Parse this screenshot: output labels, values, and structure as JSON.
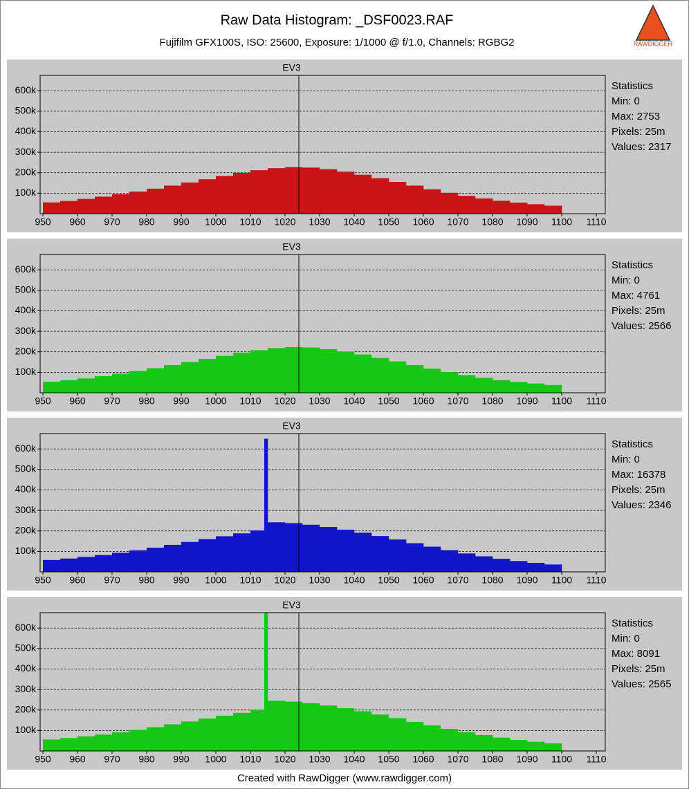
{
  "header": {
    "title": "Raw Data Histogram: _DSF0023.RAF",
    "subtitle": "Fujifilm GFX100S, ISO: 25600, Exposure: 1/1000 @ f/1.0, Channels: RGBG2"
  },
  "logo": "RAWDIGGER",
  "footer": "Created with RawDigger (www.rawdigger.com)",
  "chart_data": [
    {
      "type": "histogram",
      "title": "EV3",
      "color": "#c81414",
      "bins": [
        950,
        955,
        960,
        965,
        970,
        975,
        980,
        985,
        990,
        995,
        1000,
        1005,
        1010,
        1015,
        1020,
        1025,
        1030,
        1035,
        1040,
        1045,
        1050,
        1055,
        1060,
        1065,
        1070,
        1075,
        1080,
        1085,
        1090,
        1095,
        1100
      ],
      "counts": [
        55000,
        62000,
        72000,
        83000,
        95000,
        108000,
        122000,
        137000,
        152000,
        168000,
        184000,
        199000,
        212000,
        222000,
        227000,
        225000,
        217000,
        205000,
        190000,
        173000,
        155000,
        137000,
        119000,
        102000,
        87000,
        74000,
        63000,
        54000,
        46000,
        39000
      ],
      "xlim": [
        949.2,
        1112.6
      ],
      "ylim": [
        0,
        675000
      ],
      "xticks": [
        950,
        960,
        970,
        980,
        990,
        1000,
        1010,
        1020,
        1030,
        1040,
        1050,
        1060,
        1070,
        1080,
        1090,
        1100,
        1110
      ],
      "yticks": [
        {
          "value": 100000,
          "label": "100k"
        },
        {
          "value": 200000,
          "label": "200k"
        },
        {
          "value": 300000,
          "label": "300k"
        },
        {
          "value": 400000,
          "label": "400k"
        },
        {
          "value": 500000,
          "label": "500k"
        },
        {
          "value": 600000,
          "label": "600k"
        }
      ],
      "grid": true,
      "reference_x": 1024,
      "statistics": [
        "Statistics",
        "Min: 0",
        "Max: 2753",
        "Pixels: 25m",
        "Values: 2317"
      ]
    },
    {
      "type": "histogram",
      "title": "EV3",
      "color": "#14c814",
      "bins": [
        950,
        955,
        960,
        965,
        970,
        975,
        980,
        985,
        990,
        995,
        1000,
        1005,
        1010,
        1015,
        1020,
        1025,
        1030,
        1035,
        1040,
        1045,
        1050,
        1055,
        1060,
        1065,
        1070,
        1075,
        1080,
        1085,
        1090,
        1095,
        1100
      ],
      "counts": [
        54000,
        61000,
        70000,
        81000,
        93000,
        106000,
        120000,
        135000,
        150000,
        165000,
        180000,
        195000,
        208000,
        218000,
        223000,
        221000,
        213000,
        201000,
        187000,
        170000,
        153000,
        135000,
        118000,
        101000,
        86000,
        73000,
        62000,
        53000,
        45000,
        38000
      ],
      "xlim": [
        949.2,
        1112.6
      ],
      "ylim": [
        0,
        675000
      ],
      "xticks": [
        950,
        960,
        970,
        980,
        990,
        1000,
        1010,
        1020,
        1030,
        1040,
        1050,
        1060,
        1070,
        1080,
        1090,
        1100,
        1110
      ],
      "yticks": [
        {
          "value": 100000,
          "label": "100k"
        },
        {
          "value": 200000,
          "label": "200k"
        },
        {
          "value": 300000,
          "label": "300k"
        },
        {
          "value": 400000,
          "label": "400k"
        },
        {
          "value": 500000,
          "label": "500k"
        },
        {
          "value": 600000,
          "label": "600k"
        }
      ],
      "grid": true,
      "reference_x": 1024,
      "statistics": [
        "Statistics",
        "Min: 0",
        "Max: 4761",
        "Pixels: 25m",
        "Values: 2566"
      ]
    },
    {
      "type": "histogram",
      "title": "EV3",
      "color": "#1414c8",
      "bins": [
        950,
        955,
        960,
        965,
        970,
        975,
        980,
        985,
        990,
        995,
        1000,
        1005,
        1010,
        1014,
        1015,
        1020,
        1025,
        1030,
        1035,
        1040,
        1045,
        1050,
        1055,
        1060,
        1065,
        1070,
        1075,
        1080,
        1085,
        1090,
        1095,
        1100
      ],
      "counts": [
        58000,
        65000,
        73000,
        82000,
        93000,
        105000,
        118000,
        132000,
        146000,
        160000,
        174000,
        188000,
        202000,
        650000,
        242000,
        238000,
        230000,
        219000,
        206000,
        191000,
        175000,
        158000,
        140000,
        123000,
        106000,
        90000,
        76000,
        64000,
        53000,
        44000,
        36000
      ],
      "xlim": [
        949.2,
        1112.6
      ],
      "ylim": [
        0,
        675000
      ],
      "xticks": [
        950,
        960,
        970,
        980,
        990,
        1000,
        1010,
        1020,
        1030,
        1040,
        1050,
        1060,
        1070,
        1080,
        1090,
        1100,
        1110
      ],
      "yticks": [
        {
          "value": 100000,
          "label": "100k"
        },
        {
          "value": 200000,
          "label": "200k"
        },
        {
          "value": 300000,
          "label": "300k"
        },
        {
          "value": 400000,
          "label": "400k"
        },
        {
          "value": 500000,
          "label": "500k"
        },
        {
          "value": 600000,
          "label": "600k"
        }
      ],
      "grid": true,
      "reference_x": 1024,
      "statistics": [
        "Statistics",
        "Min: 0",
        "Max: 16378",
        "Pixels: 25m",
        "Values: 2346"
      ]
    },
    {
      "type": "histogram",
      "title": "EV3",
      "color": "#14c814",
      "bins": [
        950,
        955,
        960,
        965,
        970,
        975,
        980,
        985,
        990,
        995,
        1000,
        1005,
        1010,
        1014,
        1015,
        1020,
        1025,
        1030,
        1035,
        1040,
        1045,
        1050,
        1055,
        1060,
        1065,
        1070,
        1075,
        1080,
        1085,
        1090,
        1095,
        1100
      ],
      "counts": [
        56000,
        63000,
        71000,
        80000,
        91000,
        103000,
        116000,
        130000,
        144000,
        158000,
        172000,
        186000,
        200000,
        700000,
        245000,
        241000,
        233000,
        222000,
        209000,
        194000,
        178000,
        160000,
        142000,
        125000,
        108000,
        92000,
        78000,
        65000,
        54000,
        45000,
        37000
      ],
      "xlim": [
        949.2,
        1112.6
      ],
      "ylim": [
        0,
        675000
      ],
      "xticks": [
        950,
        960,
        970,
        980,
        990,
        1000,
        1010,
        1020,
        1030,
        1040,
        1050,
        1060,
        1070,
        1080,
        1090,
        1100,
        1110
      ],
      "yticks": [
        {
          "value": 100000,
          "label": "100k"
        },
        {
          "value": 200000,
          "label": "200k"
        },
        {
          "value": 300000,
          "label": "300k"
        },
        {
          "value": 400000,
          "label": "400k"
        },
        {
          "value": 500000,
          "label": "500k"
        },
        {
          "value": 600000,
          "label": "600k"
        }
      ],
      "grid": true,
      "reference_x": 1024,
      "statistics": [
        "Statistics",
        "Min: 0",
        "Max: 8091",
        "Pixels: 25m",
        "Values: 2565"
      ]
    }
  ]
}
